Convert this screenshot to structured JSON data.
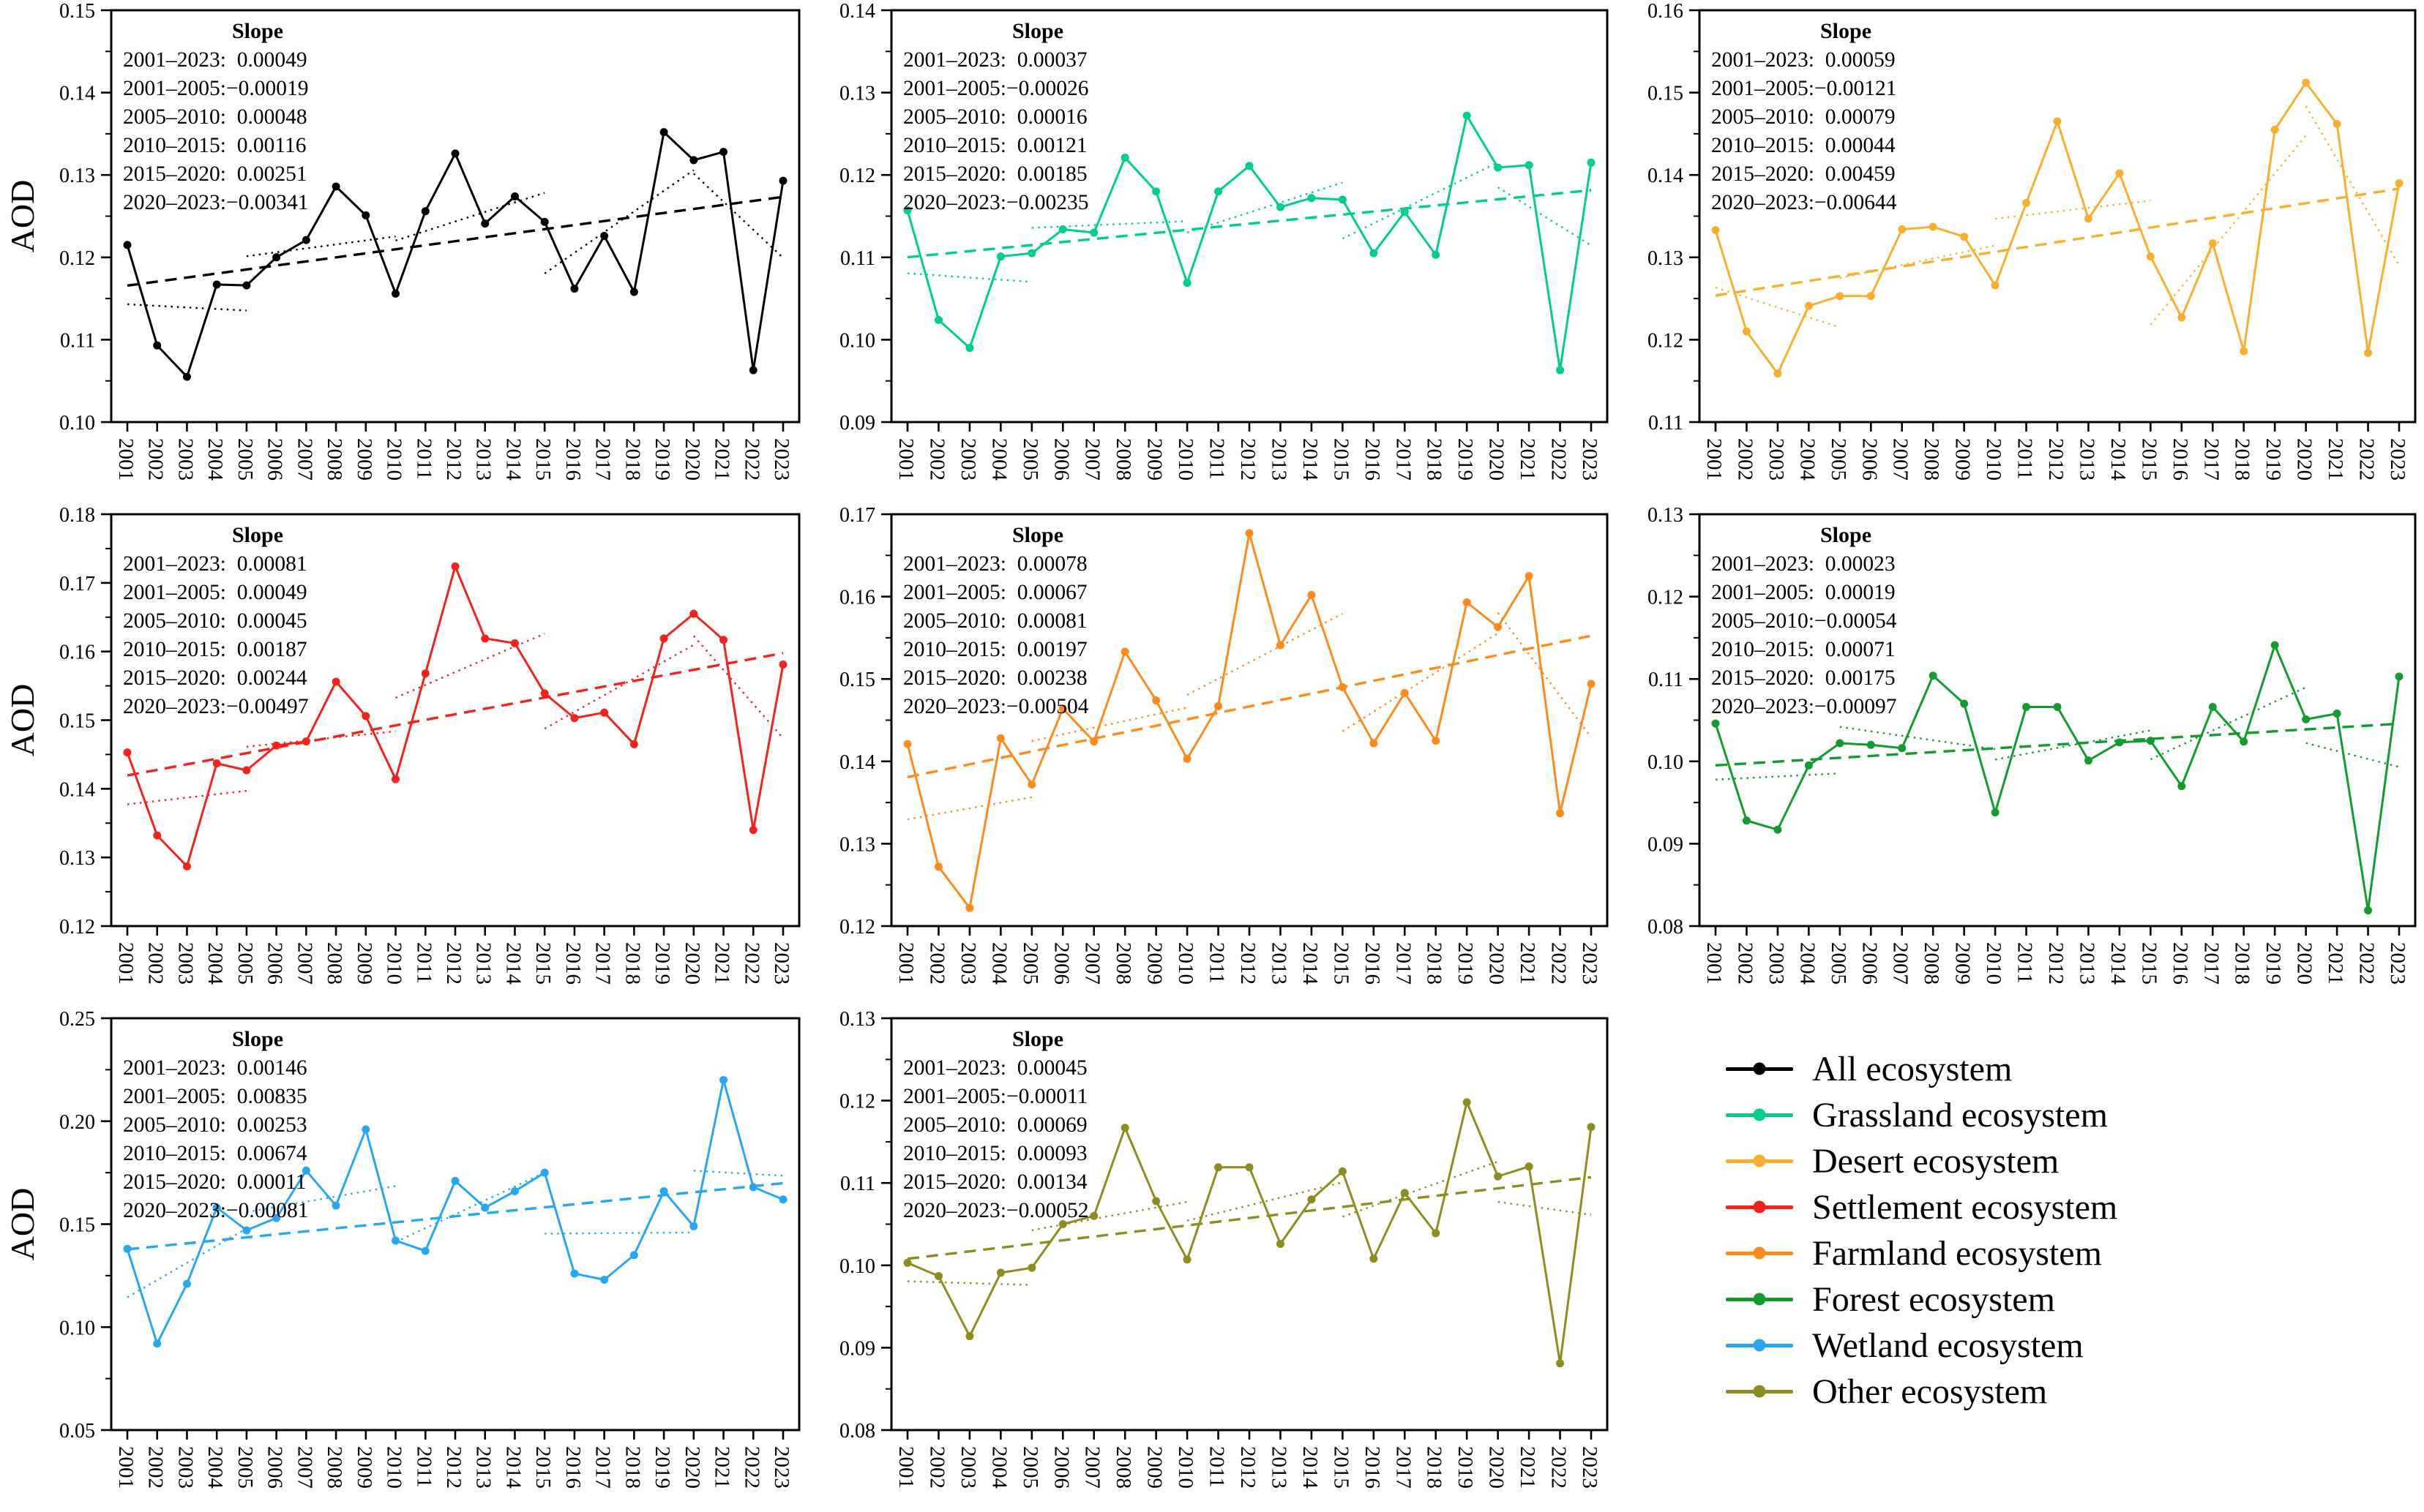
{
  "ylabel": "AOD",
  "slope_title": "Slope",
  "years": [
    2001,
    2002,
    2003,
    2004,
    2005,
    2006,
    2007,
    2008,
    2009,
    2010,
    2011,
    2012,
    2013,
    2014,
    2015,
    2016,
    2017,
    2018,
    2019,
    2020,
    2021,
    2022,
    2023
  ],
  "legend": {
    "items": [
      {
        "label": "All ecosystem",
        "color": "#000000"
      },
      {
        "label": "Grassland ecosystem",
        "color": "#00CE8E"
      },
      {
        "label": "Desert ecosystem",
        "color": "#FBAE2D"
      },
      {
        "label": "Settlement ecosystem",
        "color": "#F5211D"
      },
      {
        "label": "Farmland ecosystem",
        "color": "#FF8A1C"
      },
      {
        "label": "Forest ecosystem",
        "color": "#129C2F"
      },
      {
        "label": "Wetland ecosystem",
        "color": "#27A7F2"
      },
      {
        "label": "Other ecosystem",
        "color": "#8C8C1F"
      }
    ]
  },
  "chart_data": [
    {
      "type": "line",
      "name": "All ecosystem",
      "color": "#000000",
      "show_ylabel": true,
      "xlabel": "",
      "ylabel": "AOD",
      "ylim": [
        0.1,
        0.15
      ],
      "ytick_step": 0.01,
      "grid": false,
      "values": [
        0.1215,
        0.1093,
        0.1055,
        0.1167,
        0.1166,
        0.12,
        0.1221,
        0.1286,
        0.1251,
        0.1156,
        0.1256,
        0.1326,
        0.1241,
        0.1274,
        0.1243,
        0.1162,
        0.1226,
        0.1158,
        0.1352,
        0.1318,
        0.1328,
        0.1063,
        0.1293
      ],
      "slopes": [
        [
          "2001–2023",
          0.00049
        ],
        [
          "2001–2005",
          -0.00019
        ],
        [
          "2005–2010",
          0.00048
        ],
        [
          "2010–2015",
          0.00116
        ],
        [
          "2015–2020",
          0.00251
        ],
        [
          "2020–2023",
          -0.00341
        ]
      ]
    },
    {
      "type": "line",
      "name": "Grassland ecosystem",
      "color": "#00CE8E",
      "show_ylabel": false,
      "xlabel": "",
      "ylabel": "",
      "ylim": [
        0.09,
        0.14
      ],
      "ytick_step": 0.01,
      "grid": false,
      "values": [
        0.1157,
        0.1024,
        0.099,
        0.1101,
        0.1105,
        0.1134,
        0.113,
        0.1221,
        0.118,
        0.1069,
        0.118,
        0.1211,
        0.1161,
        0.1172,
        0.117,
        0.1105,
        0.1155,
        0.1103,
        0.1272,
        0.1209,
        0.1212,
        0.0963,
        0.1215
      ],
      "slopes": [
        [
          "2001–2023",
          0.00037
        ],
        [
          "2001–2005",
          -0.00026
        ],
        [
          "2005–2010",
          0.00016
        ],
        [
          "2010–2015",
          0.00121
        ],
        [
          "2015–2020",
          0.00185
        ],
        [
          "2020–2023",
          -0.00235
        ]
      ]
    },
    {
      "type": "line",
      "name": "Desert ecosystem",
      "color": "#FBAE2D",
      "show_ylabel": false,
      "xlabel": "",
      "ylabel": "",
      "ylim": [
        0.11,
        0.16
      ],
      "ytick_step": 0.01,
      "grid": false,
      "values": [
        0.1333,
        0.121,
        0.1159,
        0.1241,
        0.1253,
        0.1253,
        0.1334,
        0.1337,
        0.1325,
        0.1266,
        0.1366,
        0.1465,
        0.1347,
        0.1402,
        0.1301,
        0.1227,
        0.1317,
        0.1186,
        0.1455,
        0.1512,
        0.1462,
        0.1184,
        0.139
      ],
      "slopes": [
        [
          "2001–2023",
          0.00059
        ],
        [
          "2001–2005",
          -0.00121
        ],
        [
          "2005–2010",
          0.00079
        ],
        [
          "2010–2015",
          0.00044
        ],
        [
          "2015–2020",
          0.00459
        ],
        [
          "2020–2023",
          -0.00644
        ]
      ]
    },
    {
      "type": "line",
      "name": "Settlement ecosystem",
      "color": "#F5211D",
      "show_ylabel": true,
      "xlabel": "",
      "ylabel": "AOD",
      "ylim": [
        0.12,
        0.18
      ],
      "ytick_step": 0.01,
      "grid": false,
      "values": [
        0.1453,
        0.1332,
        0.1287,
        0.1437,
        0.1427,
        0.1463,
        0.1469,
        0.1556,
        0.1506,
        0.1414,
        0.1568,
        0.1724,
        0.1619,
        0.1612,
        0.1539,
        0.1503,
        0.1511,
        0.1465,
        0.1619,
        0.1655,
        0.1617,
        0.134,
        0.1581
      ],
      "slopes": [
        [
          "2001–2023",
          0.00081
        ],
        [
          "2001–2005",
          0.00049
        ],
        [
          "2005–2010",
          0.00045
        ],
        [
          "2010–2015",
          0.00187
        ],
        [
          "2015–2020",
          0.00244
        ],
        [
          "2020–2023",
          -0.00497
        ]
      ]
    },
    {
      "type": "line",
      "name": "Farmland ecosystem",
      "color": "#FF8A1C",
      "show_ylabel": false,
      "xlabel": "",
      "ylabel": "",
      "ylim": [
        0.12,
        0.17
      ],
      "ytick_step": 0.01,
      "grid": false,
      "values": [
        0.1421,
        0.1272,
        0.1222,
        0.1428,
        0.1372,
        0.1464,
        0.1424,
        0.1533,
        0.1474,
        0.1403,
        0.1467,
        0.1677,
        0.1541,
        0.1602,
        0.149,
        0.1422,
        0.1483,
        0.1425,
        0.1593,
        0.1563,
        0.1625,
        0.1337,
        0.1494
      ],
      "slopes": [
        [
          "2001–2023",
          0.00078
        ],
        [
          "2001–2005",
          0.00067
        ],
        [
          "2005–2010",
          0.00081
        ],
        [
          "2010–2015",
          0.00197
        ],
        [
          "2015–2020",
          0.00238
        ],
        [
          "2020–2023",
          -0.00504
        ]
      ]
    },
    {
      "type": "line",
      "name": "Forest ecosystem",
      "color": "#129C2F",
      "show_ylabel": false,
      "xlabel": "",
      "ylabel": "",
      "ylim": [
        0.08,
        0.13
      ],
      "ytick_step": 0.01,
      "grid": false,
      "values": [
        0.1046,
        0.0928,
        0.0917,
        0.0995,
        0.1022,
        0.102,
        0.1016,
        0.1104,
        0.107,
        0.0938,
        0.1066,
        0.1066,
        0.1001,
        0.1023,
        0.1025,
        0.097,
        0.1066,
        0.1024,
        0.1141,
        0.1051,
        0.1058,
        0.0819,
        0.1103
      ],
      "slopes": [
        [
          "2001–2023",
          0.00023
        ],
        [
          "2001–2005",
          0.00019
        ],
        [
          "2005–2010",
          -0.00054
        ],
        [
          "2010–2015",
          0.00071
        ],
        [
          "2015–2020",
          0.00175
        ],
        [
          "2020–2023",
          -0.00097
        ]
      ]
    },
    {
      "type": "line",
      "name": "Wetland ecosystem",
      "color": "#27A7F2",
      "show_ylabel": true,
      "xlabel": "",
      "ylabel": "AOD",
      "ylim": [
        0.05,
        0.25
      ],
      "ytick_step": 0.05,
      "grid": false,
      "values": [
        0.138,
        0.092,
        0.121,
        0.158,
        0.147,
        0.153,
        0.176,
        0.159,
        0.196,
        0.142,
        0.137,
        0.171,
        0.158,
        0.166,
        0.175,
        0.126,
        0.123,
        0.135,
        0.166,
        0.149,
        0.22,
        0.168,
        0.162
      ],
      "slopes": [
        [
          "2001–2023",
          0.00146
        ],
        [
          "2001–2005",
          0.00835
        ],
        [
          "2005–2010",
          0.00253
        ],
        [
          "2010–2015",
          0.00674
        ],
        [
          "2015–2020",
          0.00011
        ],
        [
          "2020–2023",
          -0.00081
        ]
      ]
    },
    {
      "type": "line",
      "name": "Other ecosystem",
      "color": "#8C8C1F",
      "show_ylabel": false,
      "xlabel": "",
      "ylabel": "",
      "ylim": [
        0.08,
        0.13
      ],
      "ytick_step": 0.01,
      "grid": false,
      "values": [
        0.1003,
        0.0987,
        0.0914,
        0.0991,
        0.0997,
        0.105,
        0.106,
        0.1167,
        0.1078,
        0.1007,
        0.1119,
        0.1119,
        0.1026,
        0.108,
        0.1114,
        0.1008,
        0.1088,
        0.1039,
        0.1198,
        0.1108,
        0.112,
        0.0881,
        0.1168
      ],
      "slopes": [
        [
          "2001–2023",
          0.00045
        ],
        [
          "2001–2005",
          -0.00011
        ],
        [
          "2005–2010",
          0.00069
        ],
        [
          "2010–2015",
          0.00093
        ],
        [
          "2015–2020",
          0.00134
        ],
        [
          "2020–2023",
          -0.00052
        ]
      ]
    }
  ]
}
